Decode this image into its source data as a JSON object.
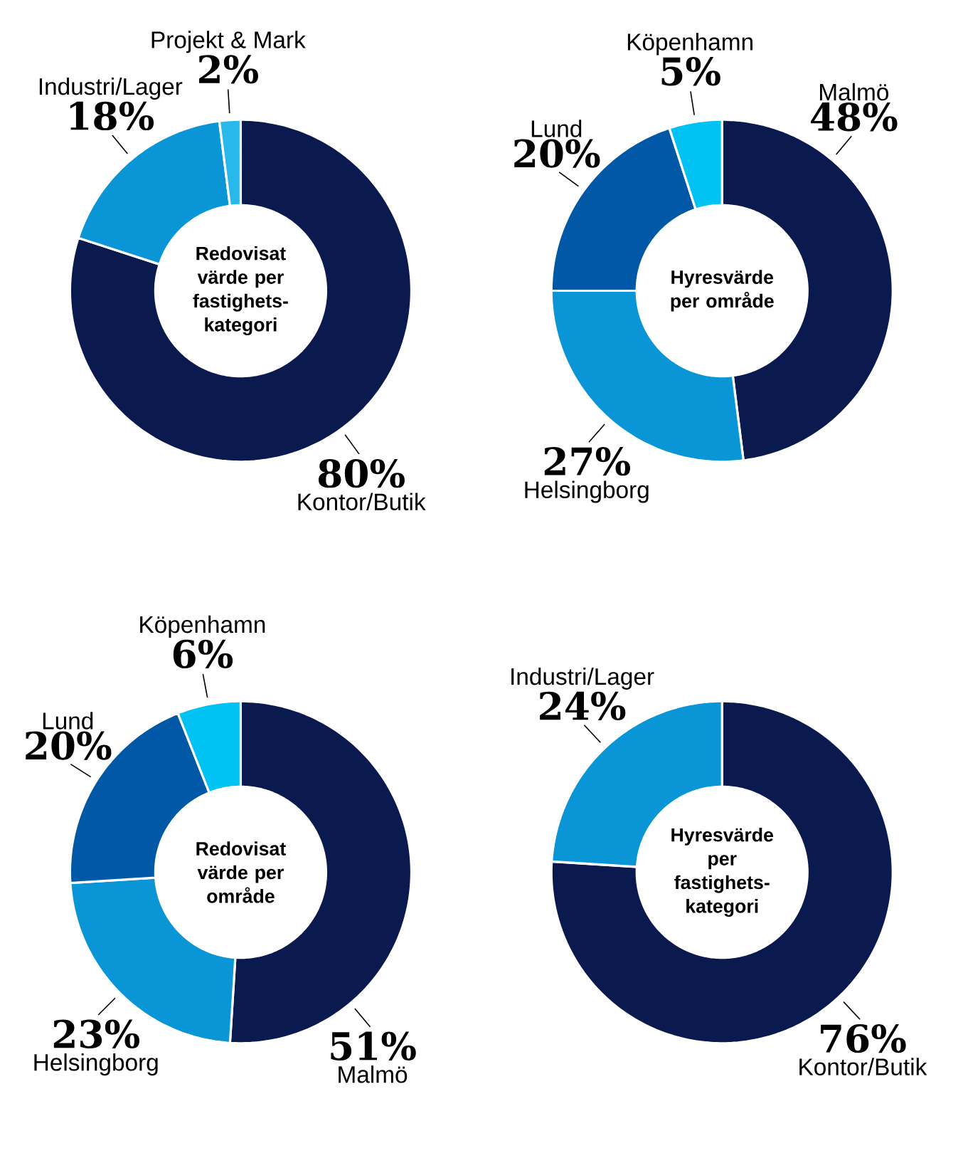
{
  "chart_data": [
    {
      "type": "donut",
      "title": "Redovisat värde per fastighets-kategori",
      "categories": [
        "Kontor/Butik",
        "Industri/Lager",
        "Projekt & Mark"
      ],
      "values": [
        80,
        18,
        2
      ],
      "value_labels": [
        "80%",
        "18%",
        "2%"
      ],
      "colors": [
        "#0a1a4f",
        "#0a95d6",
        "#29b8ec"
      ]
    },
    {
      "type": "donut",
      "title": "Hyresvärde per område",
      "categories": [
        "Malmö",
        "Helsingborg",
        "Lund",
        "Köpenhamn"
      ],
      "values": [
        48,
        27,
        20,
        5
      ],
      "value_labels": [
        "48%",
        "27%",
        "20%",
        "5%"
      ],
      "colors": [
        "#0a1a4f",
        "#0a95d6",
        "#0058a6",
        "#00c2f3"
      ]
    },
    {
      "type": "donut",
      "title": "Redovisat värde per område",
      "categories": [
        "Malmö",
        "Helsingborg",
        "Lund",
        "Köpenhamn"
      ],
      "values": [
        51,
        23,
        20,
        6
      ],
      "value_labels": [
        "51%",
        "23%",
        "20%",
        "6%"
      ],
      "colors": [
        "#0a1a4f",
        "#0a95d6",
        "#0058a6",
        "#00c2f3"
      ]
    },
    {
      "type": "donut",
      "title": "Hyresvärde per fastighets-kategori",
      "categories": [
        "Kontor/Butik",
        "Industri/Lager"
      ],
      "values": [
        76,
        24
      ],
      "value_labels": [
        "76%",
        "24%"
      ],
      "colors": [
        "#0a1a4f",
        "#0a95d6"
      ]
    }
  ]
}
